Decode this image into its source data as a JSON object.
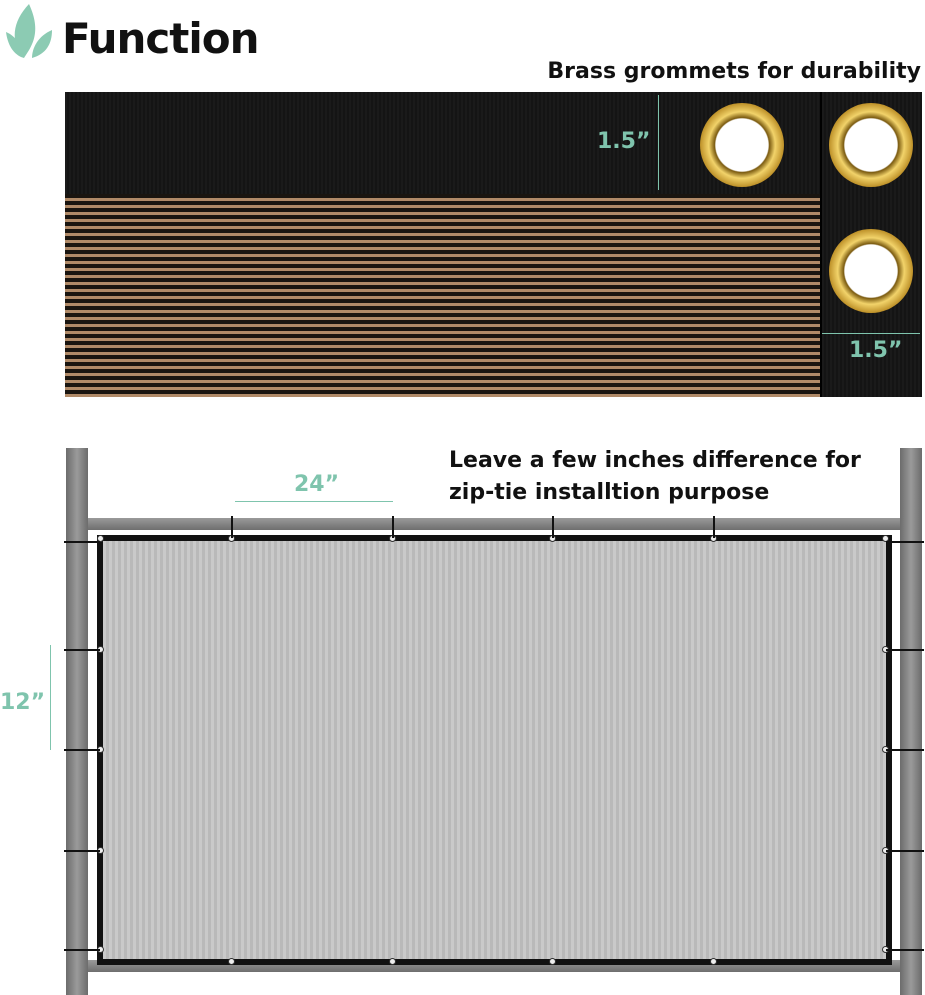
{
  "header": {
    "title": "Function",
    "icon": "leaf-icon"
  },
  "top_panel": {
    "caption": "Brass grommets for durability",
    "band_height_label": "1.5”",
    "edge_width_label": "1.5”"
  },
  "bottom_panel": {
    "caption_line1": "Leave a few inches difference for",
    "caption_line2": "zip-tie installtion purpose",
    "horizontal_spacing_label": "24”",
    "vertical_spacing_label": "12”"
  },
  "colors": {
    "accent": "#7fc4ad",
    "brown_mesh": "#b08a68",
    "grey_mesh": "#c9c9c9",
    "brass": "#d4a838"
  }
}
